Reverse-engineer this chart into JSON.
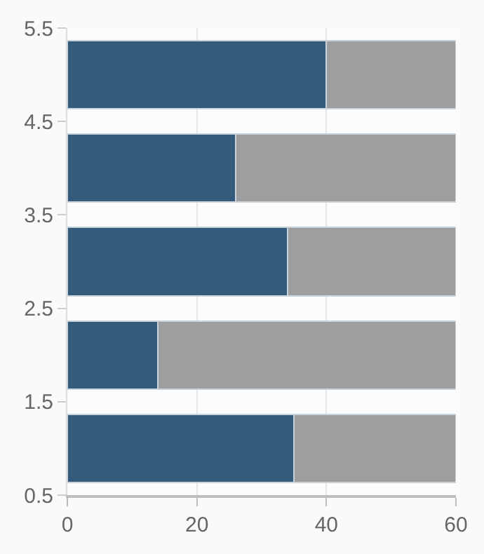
{
  "chart_data": {
    "type": "bar",
    "orientation": "horizontal",
    "stacked": true,
    "x": [
      1,
      2,
      3,
      4,
      5
    ],
    "series": [
      {
        "color": "#345b7b",
        "values": [
          35,
          14,
          34,
          26,
          40
        ]
      },
      {
        "color": "#9e9e9e",
        "values": [
          25,
          46,
          26,
          34,
          20
        ]
      }
    ],
    "xlim": [
      0,
      60
    ],
    "xticks": [
      0,
      20,
      40,
      60
    ],
    "ylim": [
      0.5,
      5.5
    ],
    "yticks": [
      0.5,
      1.5,
      2.5,
      3.5,
      4.5,
      5.5
    ],
    "grid": "x"
  }
}
